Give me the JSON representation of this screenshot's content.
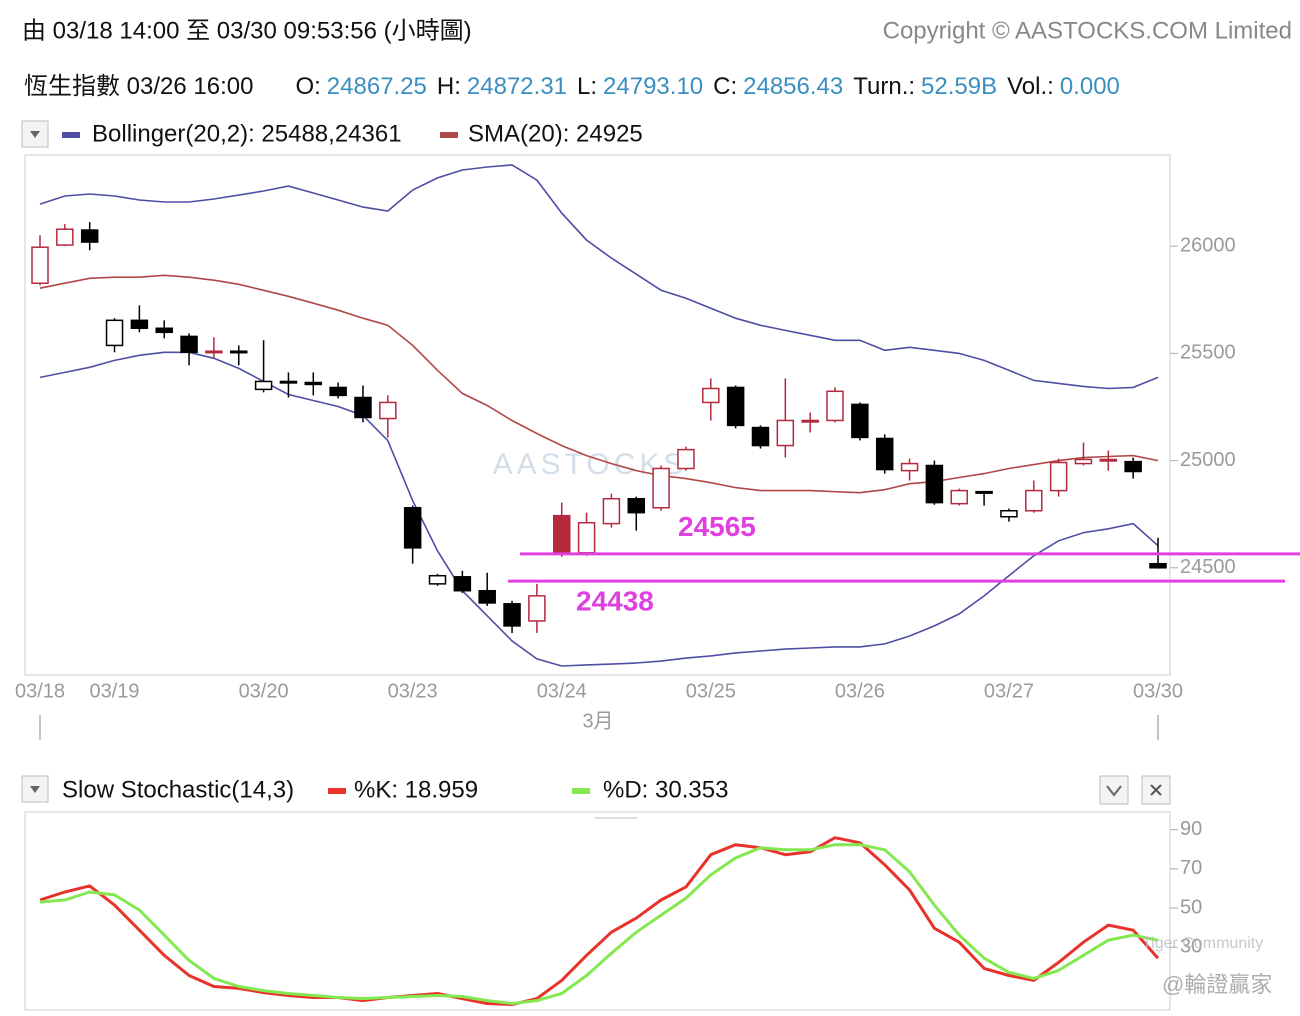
{
  "header": {
    "range": "由  03/18 14:00 至  03/30 09:53:56 (小時圖)",
    "copyright": "Copyright © AASTOCKS.COM Limited",
    "quote": {
      "name": "恆生指數 03/26 16:00",
      "fields": [
        {
          "label": "O:",
          "value": "24867.25"
        },
        {
          "label": "H:",
          "value": "24872.31"
        },
        {
          "label": "L:",
          "value": "24793.10"
        },
        {
          "label": "C:",
          "value": "24856.43"
        },
        {
          "label": "Turn.:",
          "value": "52.59B"
        },
        {
          "label": "Vol.:",
          "value": "0.000"
        }
      ]
    }
  },
  "chart_data": [
    {
      "type": "candlestick",
      "watermark": "AASTOCKS",
      "categories": [
        "03/18",
        null,
        null,
        "03/19",
        null,
        null,
        null,
        null,
        null,
        "03/20",
        null,
        null,
        null,
        null,
        null,
        "03/23",
        null,
        null,
        null,
        null,
        null,
        "03/24",
        null,
        null,
        null,
        null,
        null,
        "03/25",
        null,
        null,
        null,
        null,
        null,
        "03/26",
        null,
        null,
        null,
        null,
        null,
        "03/27",
        null,
        null,
        null,
        null,
        null,
        "03/30"
      ],
      "x_label": "3月",
      "open": [
        25827,
        26005,
        26075,
        25537,
        25654,
        25617,
        25579,
        25505,
        25510,
        25332,
        25369,
        25364,
        25341,
        25294,
        25196,
        24780,
        24425,
        24458,
        24393,
        24332,
        24252,
        24743,
        24570,
        24706,
        24822,
        24780,
        24963,
        25271,
        25341,
        25154,
        25070,
        25182,
        25187,
        25262,
        25103,
        24953,
        24977,
        24799,
        24855,
        24738,
        24766,
        24860,
        24986,
        25000,
        24995,
        24519
      ],
      "high": [
        26051,
        26103,
        26112,
        25664,
        25724,
        25654,
        25593,
        25575,
        25537,
        25561,
        25411,
        25411,
        25364,
        25350,
        25304,
        24790,
        24472,
        24486,
        24477,
        24346,
        24425,
        24804,
        24757,
        24846,
        24832,
        24977,
        25065,
        25383,
        25350,
        25164,
        25383,
        25224,
        25341,
        25271,
        25122,
        25009,
        25000,
        24869,
        24855,
        24776,
        24907,
        25009,
        25084,
        25047,
        25014,
        24640
      ],
      "low": [
        25818,
        26000,
        25981,
        25505,
        25598,
        25570,
        25444,
        25477,
        25444,
        25318,
        25294,
        25304,
        25290,
        25178,
        25107,
        24519,
        24416,
        24383,
        24322,
        24196,
        24196,
        24551,
        24556,
        24687,
        24673,
        24766,
        24953,
        25187,
        25150,
        25056,
        25014,
        25131,
        25178,
        25094,
        24939,
        24907,
        24794,
        24790,
        24790,
        24715,
        24757,
        24832,
        24977,
        24953,
        24916,
        24496
      ],
      "close": [
        25995,
        26079,
        26019,
        25654,
        25617,
        25598,
        25505,
        25510,
        25505,
        25369,
        25364,
        25355,
        25304,
        25201,
        25271,
        24593,
        24463,
        24393,
        24336,
        24229,
        24369,
        24565,
        24710,
        24822,
        24757,
        24963,
        25051,
        25336,
        25164,
        25070,
        25187,
        25187,
        25323,
        25108,
        24958,
        24986,
        24804,
        24860,
        24850,
        24766,
        24860,
        24991,
        25005,
        25005,
        24949,
        24500
      ],
      "up_color": "#b5293d",
      "down_color": "#000000",
      "series": [
        {
          "name": "Bollinger(20,2): 25488,24361",
          "color": "#4e4ea6",
          "upper": [
            26196,
            26234,
            26243,
            26234,
            26215,
            26206,
            26206,
            26220,
            26238,
            26257,
            26280,
            26248,
            26215,
            26182,
            26164,
            26262,
            26318,
            26355,
            26369,
            26379,
            26308,
            26154,
            26028,
            25944,
            25869,
            25794,
            25757,
            25710,
            25664,
            25631,
            25607,
            25584,
            25561,
            25561,
            25514,
            25528,
            25514,
            25500,
            25467,
            25421,
            25374,
            25360,
            25346,
            25336,
            25341,
            25388
          ],
          "lower": [
            25388,
            25411,
            25435,
            25467,
            25491,
            25505,
            25505,
            25477,
            25430,
            25369,
            25308,
            25280,
            25252,
            25210,
            25093,
            24813,
            24579,
            24393,
            24276,
            24159,
            24075,
            24042,
            24047,
            24051,
            24056,
            24065,
            24079,
            24089,
            24103,
            24112,
            24121,
            24126,
            24131,
            24131,
            24145,
            24182,
            24229,
            24285,
            24369,
            24463,
            24556,
            24626,
            24664,
            24682,
            24706,
            24603
          ]
        },
        {
          "name": "SMA(20): 24925",
          "color": "#b04848",
          "values": [
            25804,
            25827,
            25850,
            25855,
            25855,
            25864,
            25855,
            25841,
            25822,
            25794,
            25766,
            25734,
            25701,
            25664,
            25631,
            25537,
            25421,
            25313,
            25257,
            25187,
            25126,
            25070,
            25023,
            24986,
            24953,
            24930,
            24916,
            24897,
            24874,
            24860,
            24860,
            24860,
            24855,
            24850,
            24864,
            24892,
            24902,
            24921,
            24939,
            24963,
            24981,
            25000,
            25014,
            25019,
            25023,
            25000
          ]
        }
      ],
      "levels": [
        {
          "value": 24565,
          "color": "#e040e0"
        },
        {
          "value": 24438,
          "color": "#e040e0"
        }
      ],
      "ylim": [
        24000,
        26425
      ],
      "yticks": [
        24500,
        25000,
        25500,
        26000
      ]
    },
    {
      "type": "line",
      "title": "Slow Stochastic(14,3)",
      "series": [
        {
          "name": "%K: 18.959",
          "color": "#e8322a",
          "values": [
            54.1,
            58.2,
            61.3,
            51.5,
            38.7,
            25.9,
            15.6,
            10.0,
            9.0,
            6.9,
            5.4,
            4.4,
            4.4,
            2.8,
            4.4,
            5.4,
            6.4,
            3.8,
            1.3,
            0.8,
            3.8,
            13.1,
            25.9,
            37.7,
            44.9,
            54.1,
            60.8,
            77.2,
            82.3,
            80.8,
            77.2,
            78.7,
            85.9,
            83.3,
            72.1,
            59.2,
            39.7,
            32.6,
            19.2,
            15.6,
            13.1,
            22.3,
            32.6,
            41.3,
            38.7,
            24.4
          ]
        },
        {
          "name": "%D: 30.353",
          "color": "#84e850",
          "values": [
            53.1,
            54.1,
            58.2,
            56.7,
            49.0,
            36.2,
            23.3,
            14.1,
            10.0,
            7.9,
            6.4,
            5.4,
            4.4,
            3.8,
            4.4,
            4.9,
            5.4,
            4.9,
            2.8,
            1.3,
            2.8,
            6.4,
            15.6,
            26.9,
            37.7,
            46.4,
            55.1,
            66.9,
            75.6,
            80.8,
            79.7,
            79.7,
            82.3,
            82.3,
            79.7,
            68.5,
            51.5,
            36.2,
            24.4,
            17.2,
            14.1,
            18.2,
            25.9,
            33.6,
            36.2,
            33.6
          ]
        }
      ],
      "ylim": [
        -2,
        99
      ],
      "yticks": [
        30,
        50,
        70,
        90
      ]
    }
  ],
  "watermarks": [
    "Tiger Community",
    "@輪證贏家"
  ]
}
